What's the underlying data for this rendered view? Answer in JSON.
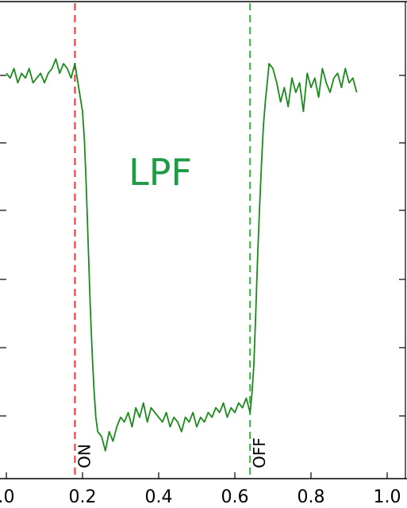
{
  "chart_data": {
    "type": "line",
    "annotation": "LPF",
    "xlim": [
      0.0,
      1.0
    ],
    "x_ticks": [
      0.0,
      0.2,
      0.4,
      0.6,
      0.8,
      1.0
    ],
    "x_tick_labels": [
      ".0",
      "0.2",
      "0.4",
      "0.6",
      "0.8",
      "1.0"
    ],
    "markers": [
      {
        "label": "ON",
        "x": 0.18,
        "color": "#ff4040"
      },
      {
        "label": "OFF",
        "x": 0.64,
        "color": "#4caf50"
      }
    ],
    "series": [
      {
        "color": "#1a8a1a",
        "x": [
          0.0,
          0.01,
          0.02,
          0.03,
          0.04,
          0.05,
          0.06,
          0.07,
          0.08,
          0.09,
          0.1,
          0.11,
          0.12,
          0.13,
          0.14,
          0.15,
          0.16,
          0.17,
          0.18,
          0.19,
          0.2,
          0.205,
          0.21,
          0.215,
          0.22,
          0.225,
          0.23,
          0.235,
          0.24,
          0.25,
          0.26,
          0.27,
          0.28,
          0.29,
          0.3,
          0.31,
          0.32,
          0.33,
          0.34,
          0.35,
          0.36,
          0.37,
          0.38,
          0.39,
          0.4,
          0.41,
          0.42,
          0.43,
          0.44,
          0.45,
          0.46,
          0.47,
          0.48,
          0.49,
          0.5,
          0.51,
          0.52,
          0.53,
          0.54,
          0.55,
          0.56,
          0.57,
          0.58,
          0.59,
          0.6,
          0.61,
          0.62,
          0.63,
          0.64,
          0.645,
          0.65,
          0.655,
          0.66,
          0.665,
          0.67,
          0.675,
          0.68,
          0.685,
          0.69,
          0.7,
          0.71,
          0.72,
          0.73,
          0.74,
          0.75,
          0.76,
          0.77,
          0.78,
          0.79,
          0.8,
          0.81,
          0.82,
          0.83,
          0.84,
          0.85,
          0.86,
          0.87,
          0.88,
          0.89,
          0.9,
          0.91,
          0.92
        ],
        "y": [
          0.86,
          0.85,
          0.87,
          0.84,
          0.86,
          0.85,
          0.87,
          0.84,
          0.85,
          0.86,
          0.84,
          0.86,
          0.87,
          0.89,
          0.86,
          0.88,
          0.87,
          0.85,
          0.88,
          0.83,
          0.78,
          0.72,
          0.62,
          0.5,
          0.38,
          0.28,
          0.2,
          0.14,
          0.11,
          0.1,
          0.07,
          0.11,
          0.09,
          0.12,
          0.14,
          0.13,
          0.15,
          0.12,
          0.16,
          0.14,
          0.17,
          0.13,
          0.16,
          0.15,
          0.14,
          0.13,
          0.15,
          0.12,
          0.14,
          0.13,
          0.11,
          0.14,
          0.13,
          0.15,
          0.12,
          0.14,
          0.13,
          0.15,
          0.14,
          0.16,
          0.15,
          0.17,
          0.14,
          0.16,
          0.15,
          0.17,
          0.16,
          0.18,
          0.15,
          0.19,
          0.25,
          0.36,
          0.48,
          0.58,
          0.67,
          0.75,
          0.8,
          0.84,
          0.88,
          0.87,
          0.84,
          0.8,
          0.83,
          0.79,
          0.85,
          0.82,
          0.84,
          0.78,
          0.86,
          0.83,
          0.85,
          0.81,
          0.87,
          0.84,
          0.82,
          0.85,
          0.86,
          0.83,
          0.87,
          0.84,
          0.85,
          0.82
        ]
      }
    ]
  }
}
